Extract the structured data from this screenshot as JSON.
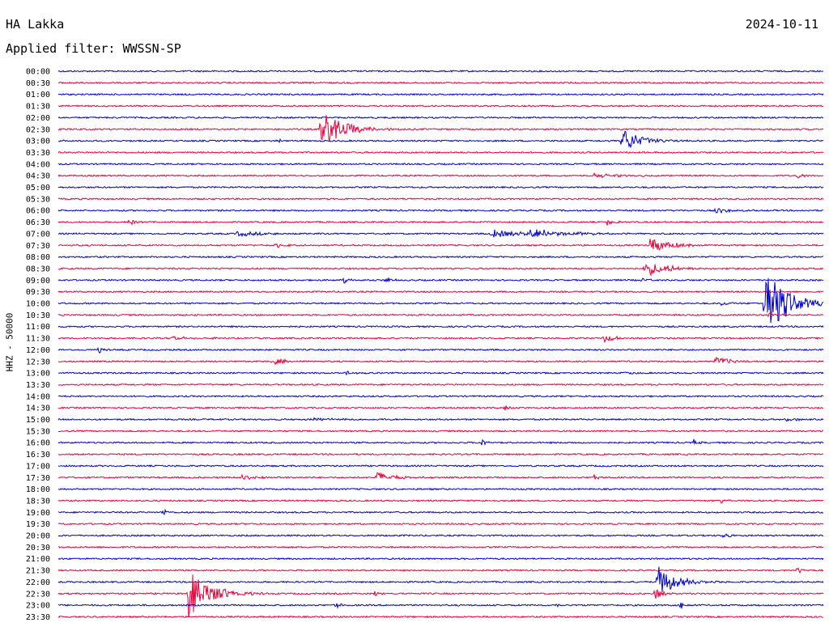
{
  "header": {
    "station": "HA Lakka",
    "date": "2024-10-11",
    "filter_label": "Applied filter: WWSSN-SP"
  },
  "chart_data": {
    "type": "line",
    "title": "HA Lakka",
    "ylabel": "HHZ - 50000",
    "row_labels": [
      "00:00",
      "00:30",
      "01:00",
      "01:30",
      "02:00",
      "02:30",
      "03:00",
      "03:30",
      "04:00",
      "04:30",
      "05:00",
      "05:30",
      "06:00",
      "06:30",
      "07:00",
      "07:30",
      "08:00",
      "08:30",
      "09:00",
      "09:30",
      "10:00",
      "10:30",
      "11:00",
      "11:30",
      "12:00",
      "12:30",
      "13:00",
      "13:30",
      "14:00",
      "14:30",
      "15:00",
      "15:30",
      "16:00",
      "16:30",
      "17:00",
      "17:30",
      "18:00",
      "18:30",
      "19:00",
      "19:30",
      "20:00",
      "20:30",
      "21:00",
      "21:30",
      "22:00",
      "22:30",
      "23:00",
      "23:30"
    ],
    "colors": [
      "#0000cc",
      "#e8003a"
    ],
    "x_minutes": [
      0,
      30
    ],
    "events": [
      {
        "row": 5,
        "minute": 10.3,
        "amp": 24,
        "dur": 1.5
      },
      {
        "row": 6,
        "minute": 22.1,
        "amp": 16,
        "dur": 1.2
      },
      {
        "row": 6,
        "minute": 8.6,
        "amp": 4,
        "dur": 0.3
      },
      {
        "row": 9,
        "minute": 21.0,
        "amp": 3,
        "dur": 1.5
      },
      {
        "row": 9,
        "minute": 29.0,
        "amp": 5,
        "dur": 0.3
      },
      {
        "row": 12,
        "minute": 25.8,
        "amp": 4,
        "dur": 0.8
      },
      {
        "row": 13,
        "minute": 2.8,
        "amp": 5,
        "dur": 0.3
      },
      {
        "row": 13,
        "minute": 21.5,
        "amp": 5,
        "dur": 0.5
      },
      {
        "row": 14,
        "minute": 7.0,
        "amp": 3,
        "dur": 2.0
      },
      {
        "row": 14,
        "minute": 17.0,
        "amp": 5,
        "dur": 2.5
      },
      {
        "row": 14,
        "minute": 18.5,
        "amp": 6,
        "dur": 2.5
      },
      {
        "row": 15,
        "minute": 8.5,
        "amp": 3,
        "dur": 0.6
      },
      {
        "row": 15,
        "minute": 23.2,
        "amp": 12,
        "dur": 1.2
      },
      {
        "row": 17,
        "minute": 23.0,
        "amp": 10,
        "dur": 1.5
      },
      {
        "row": 18,
        "minute": 11.2,
        "amp": 4,
        "dur": 0.4
      },
      {
        "row": 18,
        "minute": 12.8,
        "amp": 5,
        "dur": 0.4
      },
      {
        "row": 18,
        "minute": 22.9,
        "amp": 4,
        "dur": 0.4
      },
      {
        "row": 20,
        "minute": 27.7,
        "amp": 48,
        "dur": 1.4
      },
      {
        "row": 20,
        "minute": 26.0,
        "amp": 4,
        "dur": 0.3
      },
      {
        "row": 21,
        "minute": 27.9,
        "amp": 5,
        "dur": 0.4
      },
      {
        "row": 23,
        "minute": 21.4,
        "amp": 5,
        "dur": 0.8
      },
      {
        "row": 23,
        "minute": 4.5,
        "amp": 2,
        "dur": 1.5
      },
      {
        "row": 24,
        "minute": 1.6,
        "amp": 5,
        "dur": 0.3
      },
      {
        "row": 25,
        "minute": 8.4,
        "amp": 5,
        "dur": 0.8
      },
      {
        "row": 25,
        "minute": 25.8,
        "amp": 6,
        "dur": 0.9
      },
      {
        "row": 26,
        "minute": 11.3,
        "amp": 3,
        "dur": 0.5
      },
      {
        "row": 26,
        "minute": 22.2,
        "amp": 4,
        "dur": 0.3
      },
      {
        "row": 29,
        "minute": 17.5,
        "amp": 4,
        "dur": 0.3
      },
      {
        "row": 30,
        "minute": 10.0,
        "amp": 2,
        "dur": 2.0
      },
      {
        "row": 30,
        "minute": 28.5,
        "amp": 2,
        "dur": 1.0
      },
      {
        "row": 32,
        "minute": 16.6,
        "amp": 4,
        "dur": 0.4
      },
      {
        "row": 32,
        "minute": 24.9,
        "amp": 4,
        "dur": 0.3
      },
      {
        "row": 35,
        "minute": 7.2,
        "amp": 7,
        "dur": 0.6
      },
      {
        "row": 35,
        "minute": 12.5,
        "amp": 7,
        "dur": 1.1
      },
      {
        "row": 35,
        "minute": 21.0,
        "amp": 4,
        "dur": 0.3
      },
      {
        "row": 37,
        "minute": 26.0,
        "amp": 3,
        "dur": 0.4
      },
      {
        "row": 38,
        "minute": 4.1,
        "amp": 5,
        "dur": 0.3
      },
      {
        "row": 40,
        "minute": 26.1,
        "amp": 5,
        "dur": 0.3
      },
      {
        "row": 43,
        "minute": 29.0,
        "amp": 5,
        "dur": 0.3
      },
      {
        "row": 44,
        "minute": 23.5,
        "amp": 20,
        "dur": 1.2
      },
      {
        "row": 45,
        "minute": 5.1,
        "amp": 30,
        "dur": 1.5
      },
      {
        "row": 45,
        "minute": 23.4,
        "amp": 8,
        "dur": 0.6
      },
      {
        "row": 45,
        "minute": 12.4,
        "amp": 4,
        "dur": 0.4
      },
      {
        "row": 45,
        "minute": 30.0,
        "amp": 4,
        "dur": 0.4
      },
      {
        "row": 46,
        "minute": 10.9,
        "amp": 5,
        "dur": 0.3
      },
      {
        "row": 46,
        "minute": 19.5,
        "amp": 5,
        "dur": 0.3
      },
      {
        "row": 46,
        "minute": 24.4,
        "amp": 5,
        "dur": 0.3
      }
    ]
  }
}
